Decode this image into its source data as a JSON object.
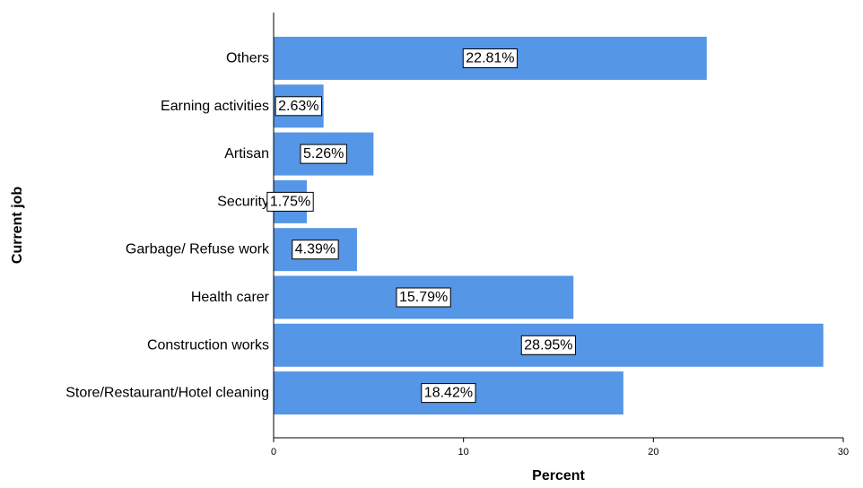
{
  "chart_data": {
    "type": "bar",
    "orientation": "horizontal",
    "categories": [
      "Others",
      "Earning activities",
      "Artisan",
      "Security",
      "Garbage/ Refuse work",
      "Health carer",
      "Construction works",
      "Store/Restaurant/Hotel cleaning"
    ],
    "values": [
      22.81,
      2.63,
      5.26,
      1.75,
      4.39,
      15.79,
      28.95,
      18.42
    ],
    "data_labels": [
      "22.81%",
      "2.63%",
      "5.26%",
      "1.75%",
      "4.39%",
      "15.79%",
      "28.95%",
      "18.42%"
    ],
    "xlabel": "Percent",
    "ylabel": "Current job",
    "xlim": [
      0,
      30
    ],
    "xticks": [
      "0",
      "10",
      "20",
      "30"
    ],
    "grid": false,
    "colors": {
      "bar": "#5596E6",
      "label_box_fill": "#ffffff",
      "label_box_stroke": "#000000",
      "axis": "#000000"
    }
  }
}
